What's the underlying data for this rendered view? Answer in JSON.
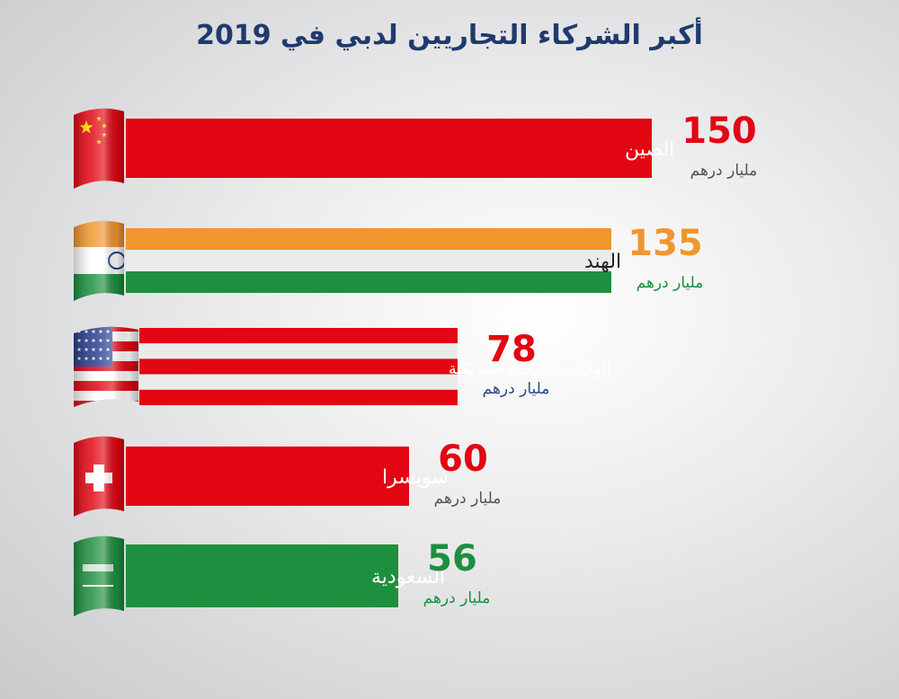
{
  "title": "أكبر الشركاء التجاريين لدبي في 2019",
  "chart_data": {
    "type": "bar",
    "orientation": "horizontal",
    "title": "أكبر الشركاء التجاريين لدبي في 2019",
    "unit": "مليار درهم",
    "categories": [
      "الصين",
      "الهند",
      "الولايات المتحدة الأمريكية",
      "سويسرا",
      "السعودية"
    ],
    "values": [
      150,
      135,
      78,
      60,
      56
    ],
    "flags": [
      "china-flag-icon",
      "india-flag-icon",
      "usa-flag-icon",
      "switzerland-flag-icon",
      "saudi-flag-icon"
    ],
    "value_colors": [
      "#e30613",
      "#f0962e",
      "#e30613",
      "#e30613",
      "#1e8f3e"
    ],
    "unit_colors": [
      "#555555",
      "#1e8f3e",
      "#2b4a8c",
      "#555555",
      "#1e8f3e"
    ],
    "colors": {
      "red": "#e30613",
      "orange": "#f0962e",
      "green": "#1e8f3e",
      "white": "#ebebeb"
    }
  }
}
